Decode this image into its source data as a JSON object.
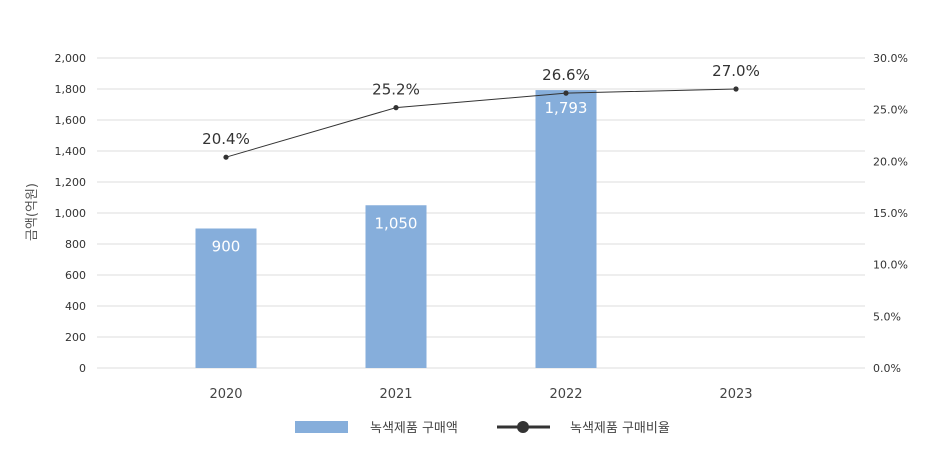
{
  "chart_data": {
    "type": "bar",
    "categories": [
      "2020",
      "2021",
      "2022",
      "2023"
    ],
    "series": [
      {
        "name": "녹색제품 구매액",
        "type": "bar",
        "axis": "left",
        "values": [
          900,
          1050,
          1793,
          null
        ],
        "labels": [
          "900",
          "1,050",
          "1,793",
          ""
        ],
        "color": "#86aedb"
      },
      {
        "name": "녹색제품 구매비율",
        "type": "line",
        "axis": "right",
        "values": [
          20.4,
          25.2,
          26.6,
          27.0
        ],
        "labels": [
          "20.4%",
          "25.2%",
          "26.6%",
          "27.0%"
        ],
        "color": "#333333"
      }
    ],
    "ylabel": "금액(억원)",
    "ylim": [
      0,
      2000
    ],
    "y_ticks": [
      "0",
      "200",
      "400",
      "600",
      "800",
      "1,000",
      "1,200",
      "1,400",
      "1,600",
      "1,800",
      "2,000"
    ],
    "y2lim": [
      0,
      30
    ],
    "y2_ticks": [
      "0.0%",
      "5.0%",
      "10.0%",
      "15.0%",
      "20.0%",
      "25.0%",
      "30.0%"
    ],
    "grid": true,
    "legend_position": "bottom"
  }
}
